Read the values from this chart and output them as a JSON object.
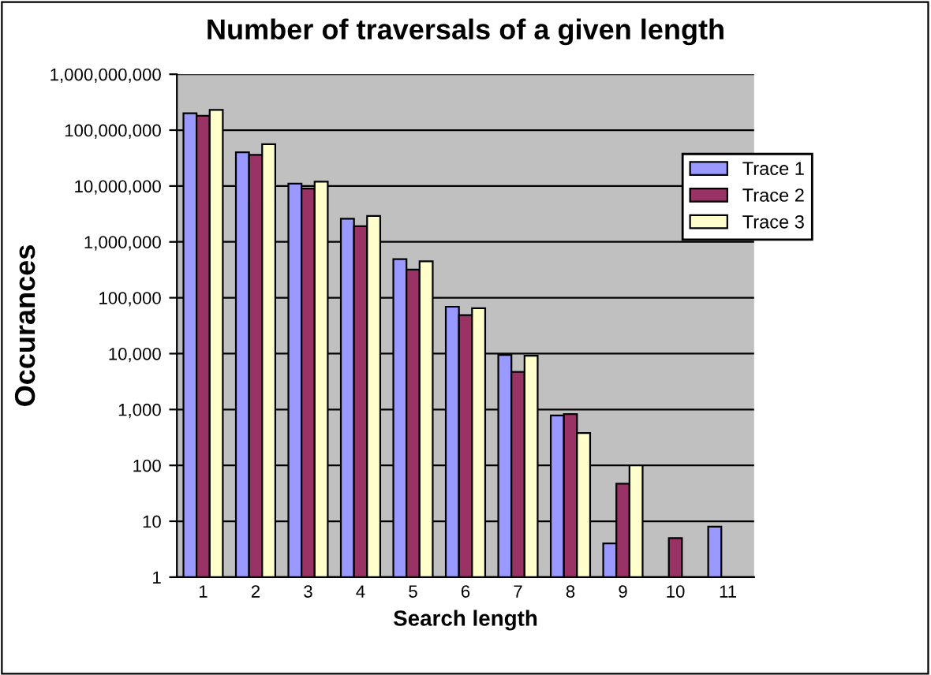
{
  "chart_data": {
    "type": "bar",
    "title": "Number of traversals of a given length",
    "xlabel": "Search length",
    "ylabel": "Occurances",
    "categories": [
      "1",
      "2",
      "3",
      "4",
      "5",
      "6",
      "7",
      "8",
      "9",
      "10",
      "11"
    ],
    "series": [
      {
        "name": "Trace 1",
        "color": "#9999ff",
        "values": [
          200000000,
          40000000,
          11000000,
          2600000,
          490000,
          69000,
          9500,
          780,
          4,
          null,
          8
        ]
      },
      {
        "name": "Trace 2",
        "color": "#993366",
        "values": [
          180000000,
          36000000,
          9000000,
          1900000,
          320000,
          49000,
          4700,
          830,
          47,
          5,
          null
        ]
      },
      {
        "name": "Trace 3",
        "color": "#ffffcc",
        "values": [
          230000000,
          56000000,
          12000000,
          2900000,
          450000,
          65000,
          9200,
          380,
          100,
          null,
          null
        ]
      }
    ],
    "log": true,
    "ylim": [
      1,
      1000000000
    ],
    "yticks": [
      {
        "value": 1,
        "label": "1"
      },
      {
        "value": 10,
        "label": "10"
      },
      {
        "value": 100,
        "label": "100"
      },
      {
        "value": 1000,
        "label": "1,000"
      },
      {
        "value": 10000,
        "label": "10,000"
      },
      {
        "value": 100000,
        "label": "100,000"
      },
      {
        "value": 1000000,
        "label": "1,000,000"
      },
      {
        "value": 10000000,
        "label": "10,000,000"
      },
      {
        "value": 100000000,
        "label": "100,000,000"
      },
      {
        "value": 1000000000,
        "label": "1,000,000,000"
      }
    ],
    "grid": "y",
    "legend": "top right"
  }
}
